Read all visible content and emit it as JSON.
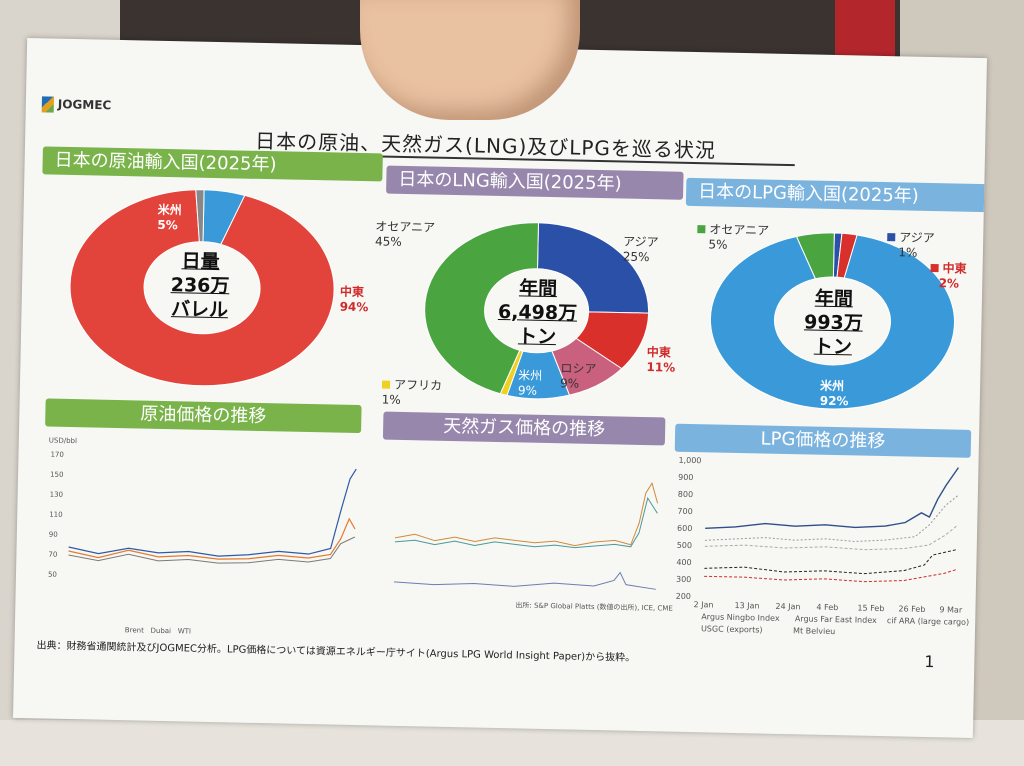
{
  "org": "JOGMEC",
  "title": "日本の原油、天然ガス(LNG)及びLPGを巡る状況",
  "crude": {
    "header": "日本の原油輸入国(2025年)",
    "center": [
      "日量",
      "236万",
      "バレル"
    ],
    "segments": [
      {
        "label": "米州",
        "pct": "5%",
        "value": 5,
        "color": "#3a9ad9"
      },
      {
        "label": "中東",
        "pct": "94%",
        "value": 94,
        "color": "#e2433a"
      },
      {
        "label": "",
        "pct": "",
        "value": 1,
        "color": "#888888"
      }
    ]
  },
  "lng": {
    "header": "日本のLNG輸入国(2025年)",
    "center": [
      "年間",
      "6,498万",
      "トン"
    ],
    "segments": [
      {
        "label": "アジア",
        "pct": "25%",
        "value": 25,
        "color": "#2b50a8"
      },
      {
        "label": "中東",
        "pct": "11%",
        "value": 11,
        "color": "#d9302b"
      },
      {
        "label": "ロシア",
        "pct": "9%",
        "value": 9,
        "color": "#c9607e"
      },
      {
        "label": "米州",
        "pct": "9%",
        "value": 9,
        "color": "#3a9ad9"
      },
      {
        "label": "アフリカ",
        "pct": "1%",
        "value": 1,
        "color": "#f0d020"
      },
      {
        "label": "オセアニア",
        "pct": "45%",
        "value": 45,
        "color": "#4aa540"
      }
    ]
  },
  "lpg": {
    "header": "日本のLPG輸入国(2025年)",
    "center": [
      "年間",
      "993万",
      "トン"
    ],
    "segments": [
      {
        "label": "アジア",
        "pct": "1%",
        "value": 1,
        "color": "#2b50a8"
      },
      {
        "label": "中東",
        "pct": "2%",
        "value": 2,
        "color": "#d9302b"
      },
      {
        "label": "米州",
        "pct": "92%",
        "value": 92,
        "color": "#3a9ad9"
      },
      {
        "label": "オセアニア",
        "pct": "5%",
        "value": 5,
        "color": "#4aa540"
      }
    ]
  },
  "crude_price": {
    "header": "原油価格の推移",
    "unit": "USD/bbl",
    "yticks": [
      "170",
      "150",
      "130",
      "110",
      "90",
      "70",
      "50"
    ],
    "legend": [
      "Brent",
      "Dubai",
      "WTI"
    ]
  },
  "gas_price": {
    "header": "天然ガス価格の推移",
    "source_note": "出所: S&P Global Platts (数値の出所), ICE, CME"
  },
  "lpg_price": {
    "header": "LPG価格の推移",
    "yticks": [
      "1,000",
      "900",
      "800",
      "700",
      "600",
      "500",
      "400",
      "300",
      "200"
    ],
    "xticks": [
      "2 Jan",
      "13 Jan",
      "24 Jan",
      "4 Feb",
      "15 Feb",
      "26 Feb",
      "9 Mar"
    ],
    "legend": [
      "Argus Ningbo Index",
      "Argus Far East Index",
      "cif ARA (large cargo)",
      "USGC (exports)",
      "Mt Belvieu"
    ]
  },
  "source": "出典：財務省通関統計及びJOGMEC分析。LPG価格については資源エネルギー庁サイト(Argus LPG World Insight Paper)から抜粋。",
  "page_number": "1",
  "colors": {
    "green": "#79b34a",
    "purple": "#9887ad",
    "blue": "#7bb3df"
  }
}
